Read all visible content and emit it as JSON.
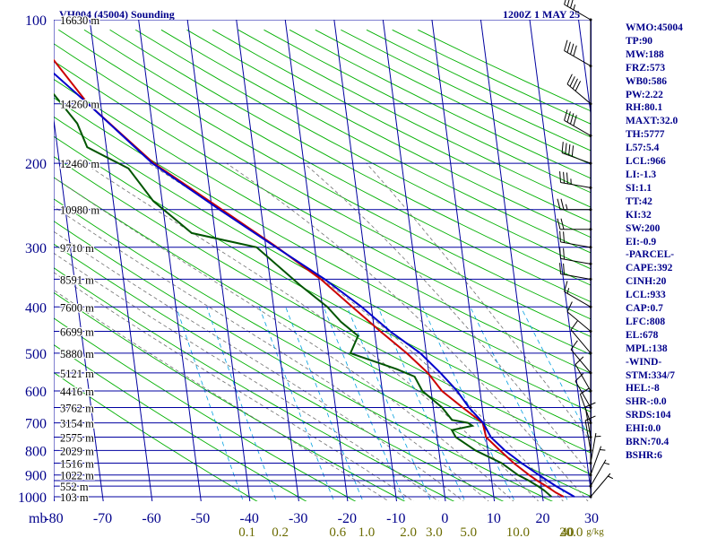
{
  "header": {
    "station_title": "VH004 (45004) Sounding",
    "valid_time": "1200Z  1 MAY 25"
  },
  "indices": [
    "WMO:45004",
    "TP:90",
    "MW:188",
    "FRZ:573",
    "WB0:586",
    "PW:2.22",
    "RH:80.1",
    "MAXT:32.0",
    "TH:5777",
    "L57:5.4",
    "LCL:966",
    "LI:-1.3",
    "SI:1.1",
    "TT:42",
    "KI:32",
    "SW:200",
    "EI:-0.9",
    "-PARCEL-",
    "CAPE:392",
    "CINH:20",
    "LCL:933",
    "CAP:0.7",
    "LFC:808",
    "EL:678",
    "MPL:138",
    "-WIND-",
    "STM:334/7",
    "HEL:-8",
    "SHR-:0.0",
    "SRDS:104",
    "EHI:0.0",
    "BRN:70.4",
    "BSHR:6"
  ],
  "colors": {
    "grid": "#0000a0",
    "dry_adiabat": "#00b000",
    "moist_adiabat": "#707070",
    "mixing_ratio": "#00a0e0",
    "temperature": "#cc0000",
    "dewpoint": "#005500",
    "parcel": "#0000cc",
    "wind_barb": "#000000",
    "axis_text": "#00008b",
    "mixing_text": "#6b6b00"
  },
  "chart_data": {
    "type": "line",
    "title": "VH004 (45004) Sounding",
    "xlabel": "",
    "ylabel": "mb",
    "x_unit_label": "mb",
    "xlim": [
      -80,
      30
    ],
    "ylim": [
      1000,
      100
    ],
    "y_scale": "log",
    "grid": true,
    "pressure_ticks": [
      {
        "p": 100,
        "label": "100"
      },
      {
        "p": 200,
        "label": "200"
      },
      {
        "p": 300,
        "label": "300"
      },
      {
        "p": 400,
        "label": "400"
      },
      {
        "p": 500,
        "label": "500"
      },
      {
        "p": 600,
        "label": "600"
      },
      {
        "p": 700,
        "label": "700"
      },
      {
        "p": 800,
        "label": "800"
      },
      {
        "p": 900,
        "label": "900"
      },
      {
        "p": 1000,
        "label": "1000"
      }
    ],
    "pressure_lines": [
      100,
      150,
      200,
      250,
      300,
      350,
      400,
      450,
      500,
      550,
      600,
      650,
      700,
      750,
      800,
      850,
      900,
      925,
      950,
      1000
    ],
    "temperature_ticks": [
      {
        "t": -80,
        "label": "-80"
      },
      {
        "t": -70,
        "label": "-70"
      },
      {
        "t": -60,
        "label": "-60"
      },
      {
        "t": -50,
        "label": "-50"
      },
      {
        "t": -40,
        "label": "-40"
      },
      {
        "t": -30,
        "label": "-30"
      },
      {
        "t": -20,
        "label": "-20"
      },
      {
        "t": -10,
        "label": "-10"
      },
      {
        "t": 0,
        "label": "0"
      },
      {
        "t": 10,
        "label": "10"
      },
      {
        "t": 20,
        "label": "20"
      },
      {
        "t": 30,
        "label": "30"
      }
    ],
    "mixing_ratio_labels": [
      "0.1",
      "0.2",
      "0.6",
      "1.0",
      "2.0",
      "3.0",
      "5.0",
      "10.0",
      "20.0",
      "40"
    ],
    "mixing_ratio_unit": "g/kg",
    "mixing_ratio_values": [
      0.1,
      0.2,
      0.6,
      1.0,
      2.0,
      3.0,
      5.0,
      10.0,
      20.0,
      40.0
    ],
    "height_labels": [
      {
        "p": 100,
        "label": "16630 m"
      },
      {
        "p": 150,
        "label": "14260 m"
      },
      {
        "p": 200,
        "label": "12460 m"
      },
      {
        "p": 250,
        "label": "10980 m"
      },
      {
        "p": 300,
        "label": "9710 m"
      },
      {
        "p": 350,
        "label": "8591 m"
      },
      {
        "p": 400,
        "label": "7600 m"
      },
      {
        "p": 450,
        "label": "6699 m"
      },
      {
        "p": 500,
        "label": "5880 m"
      },
      {
        "p": 550,
        "label": "5121 m"
      },
      {
        "p": 600,
        "label": "4416 m"
      },
      {
        "p": 650,
        "label": "3762 m"
      },
      {
        "p": 700,
        "label": "3154 m"
      },
      {
        "p": 750,
        "label": "2575 m"
      },
      {
        "p": 800,
        "label": "2029 m"
      },
      {
        "p": 850,
        "label": "1516 m"
      },
      {
        "p": 900,
        "label": "1022 m"
      },
      {
        "p": 950,
        "label": "552 m"
      },
      {
        "p": 1000,
        "label": "103 m"
      }
    ],
    "series": [
      {
        "name": "Temperature",
        "key": "temperature",
        "points": [
          [
            1000,
            24.3
          ],
          [
            980,
            22.8
          ],
          [
            950,
            21.0
          ],
          [
            925,
            19.3
          ],
          [
            900,
            17.8
          ],
          [
            850,
            15.0
          ],
          [
            800,
            12.5
          ],
          [
            750,
            10.0
          ],
          [
            700,
            9.7
          ],
          [
            650,
            6.0
          ],
          [
            600,
            2.2
          ],
          [
            550,
            -0.2
          ],
          [
            500,
            -4.0
          ],
          [
            450,
            -8.8
          ],
          [
            400,
            -13.9
          ],
          [
            350,
            -19.6
          ],
          [
            300,
            -27.7
          ],
          [
            250,
            -38.0
          ],
          [
            200,
            -50.7
          ],
          [
            150,
            -62.6
          ],
          [
            120,
            -68.8
          ],
          [
            100,
            -74.1
          ]
        ]
      },
      {
        "name": "Dewpoint",
        "key": "dewpoint",
        "points": [
          [
            1000,
            21.8
          ],
          [
            970,
            20.5
          ],
          [
            950,
            19.3
          ],
          [
            925,
            17.6
          ],
          [
            900,
            15.5
          ],
          [
            850,
            12.5
          ],
          [
            800,
            7.5
          ],
          [
            750,
            3.8
          ],
          [
            725,
            3.2
          ],
          [
            710,
            7.5
          ],
          [
            700,
            6.7
          ],
          [
            690,
            3.5
          ],
          [
            650,
            1.8
          ],
          [
            600,
            -1.8
          ],
          [
            560,
            -3.0
          ],
          [
            540,
            -6.5
          ],
          [
            500,
            -15.5
          ],
          [
            460,
            -13.5
          ],
          [
            430,
            -16.6
          ],
          [
            400,
            -19.0
          ],
          [
            360,
            -24.0
          ],
          [
            300,
            -31.9
          ],
          [
            280,
            -44.8
          ],
          [
            240,
            -51.8
          ],
          [
            205,
            -56.0
          ],
          [
            185,
            -63.9
          ],
          [
            165,
            -65.3
          ],
          [
            130,
            -72.1
          ],
          [
            110,
            -78.8
          ]
        ]
      },
      {
        "name": "Parcel",
        "key": "parcel",
        "points": [
          [
            1000,
            26.5
          ],
          [
            950,
            23.0
          ],
          [
            900,
            19.8
          ],
          [
            850,
            16.6
          ],
          [
            800,
            13.5
          ],
          [
            750,
            11.0
          ],
          [
            700,
            9.8
          ],
          [
            650,
            7.3
          ],
          [
            600,
            5.3
          ],
          [
            550,
            2.4
          ],
          [
            500,
            -1.2
          ],
          [
            450,
            -6.8
          ],
          [
            400,
            -12.0
          ],
          [
            350,
            -18.8
          ],
          [
            300,
            -27.9
          ],
          [
            250,
            -38.5
          ],
          [
            200,
            -51.0
          ],
          [
            150,
            -62.6
          ],
          [
            120,
            -72.0
          ],
          [
            110,
            -77.3
          ]
        ]
      }
    ],
    "wind_barbs": [
      {
        "p": 100,
        "dir": 300,
        "speed": 35
      },
      {
        "p": 125,
        "dir": 300,
        "speed": 40
      },
      {
        "p": 150,
        "dir": 310,
        "speed": 40
      },
      {
        "p": 175,
        "dir": 300,
        "speed": 40
      },
      {
        "p": 200,
        "dir": 290,
        "speed": 40
      },
      {
        "p": 225,
        "dir": 280,
        "speed": 35
      },
      {
        "p": 250,
        "dir": 270,
        "speed": 25
      },
      {
        "p": 275,
        "dir": 270,
        "speed": 20
      },
      {
        "p": 300,
        "dir": 280,
        "speed": 20
      },
      {
        "p": 325,
        "dir": 280,
        "speed": 20
      },
      {
        "p": 350,
        "dir": 280,
        "speed": 20
      },
      {
        "p": 400,
        "dir": 300,
        "speed": 15
      },
      {
        "p": 450,
        "dir": 310,
        "speed": 10
      },
      {
        "p": 500,
        "dir": 320,
        "speed": 10
      },
      {
        "p": 550,
        "dir": 320,
        "speed": 10
      },
      {
        "p": 600,
        "dir": 330,
        "speed": 10
      },
      {
        "p": 650,
        "dir": 330,
        "speed": 10
      },
      {
        "p": 700,
        "dir": 340,
        "speed": 10
      },
      {
        "p": 750,
        "dir": 350,
        "speed": 10
      },
      {
        "p": 800,
        "dir": 350,
        "speed": 10
      },
      {
        "p": 850,
        "dir": 10,
        "speed": 5
      },
      {
        "p": 900,
        "dir": 20,
        "speed": 5
      },
      {
        "p": 950,
        "dir": 30,
        "speed": 5
      },
      {
        "p": 1000,
        "dir": 40,
        "speed": 5
      }
    ]
  }
}
